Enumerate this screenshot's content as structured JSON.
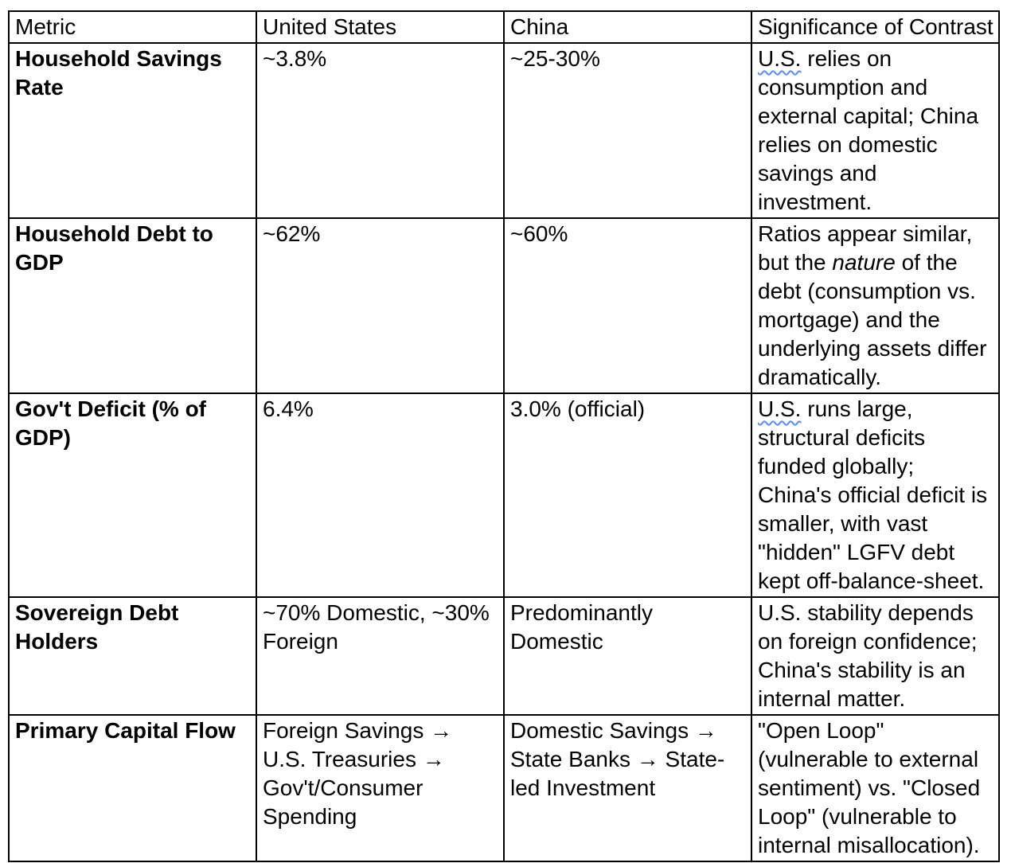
{
  "colors": {
    "grammar_underline": "#5a8cf1",
    "table_border": "#000000",
    "text": "#000000",
    "background": "#ffffff"
  },
  "table": {
    "headers": {
      "metric": "Metric",
      "us": "United States",
      "china": "China",
      "significance": "Significance of Contrast"
    },
    "rows": [
      {
        "metric": "Household Savings Rate",
        "us": "~3.8%",
        "china": "~25-30%",
        "sig_flagged": "U.S.",
        "sig_rest": " relies on consumption and external capital; China relies on domestic savings and investment."
      },
      {
        "metric": "Household Debt to GDP",
        "us": "~62%",
        "china": "~60%",
        "sig_pre": "Ratios appear similar, but the ",
        "sig_italic": "nature",
        "sig_post": " of the debt (consumption vs. mortgage) and the underlying assets differ dramatically."
      },
      {
        "metric": "Gov't Deficit (% of GDP)",
        "us": "6.4%",
        "china": "3.0% (official)",
        "sig_flagged": "U.S.",
        "sig_rest": " runs large, structural deficits funded globally; China's official deficit is smaller, with vast \"hidden\" LGFV debt kept off-balance-sheet."
      },
      {
        "metric": "Sovereign Debt Holders",
        "us": "~70% Domestic, ~30% Foreign",
        "china": "Predominantly Domestic",
        "sig": "U.S. stability depends on foreign confidence; China's stability is an internal matter."
      },
      {
        "metric": "Primary Capital Flow",
        "us": "Foreign Savings → U.S. Treasuries → Gov't/Consumer Spending",
        "china": "Domestic Savings → State Banks → State-led Investment",
        "sig": "\"Open Loop\" (vulnerable to external sentiment) vs. \"Closed Loop\" (vulnerable to internal misallocation)."
      }
    ]
  }
}
